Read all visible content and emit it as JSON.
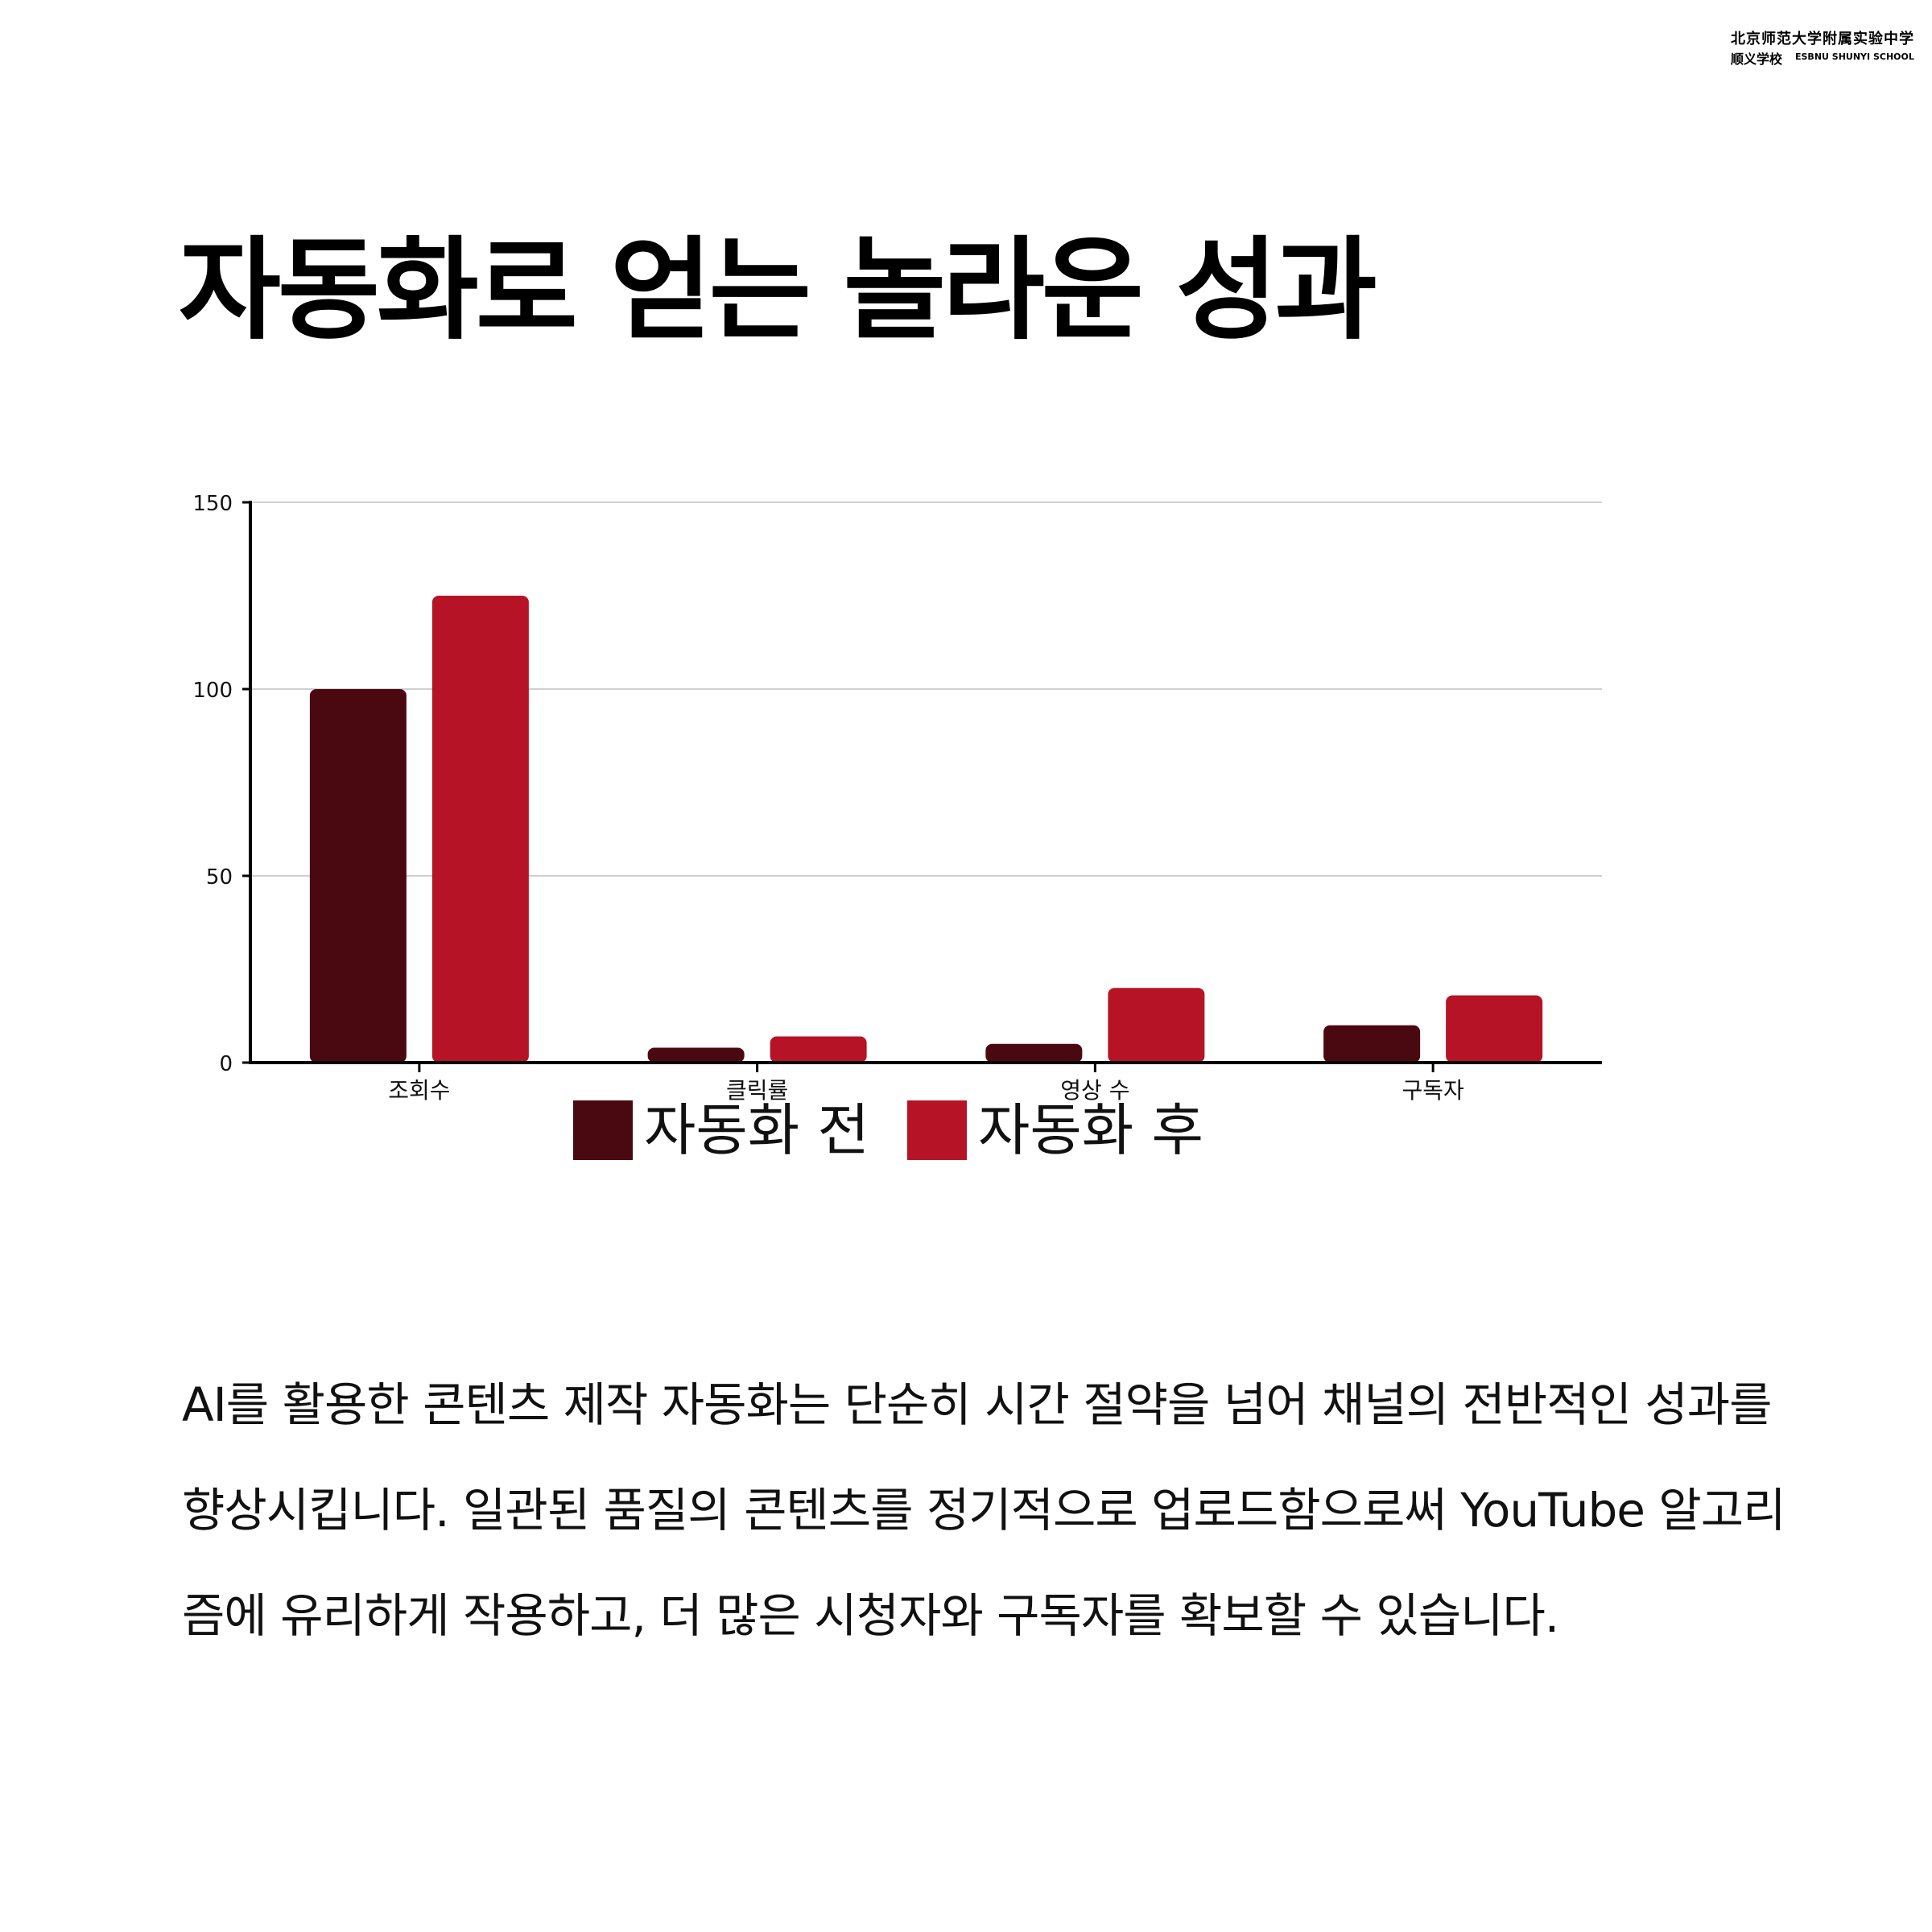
{
  "logo": {
    "line1": "北京师范大学附属实验中学",
    "line2": "顺义学校",
    "line2_en": "ESBNU SHUNYI SCHOOL"
  },
  "title": "자동화로 얻는 놀라운 성과",
  "colors": {
    "before": "#4a0911",
    "after": "#b71326",
    "grid": "#cfcfcf",
    "axis": "#000000"
  },
  "chart_data": {
    "type": "bar",
    "categories": [
      "조회수",
      "클릭률",
      "영상 수",
      "구독자"
    ],
    "series": [
      {
        "name": "자동화 전",
        "values": [
          100,
          4,
          5,
          10
        ]
      },
      {
        "name": "자동화 후",
        "values": [
          125,
          7,
          20,
          18
        ]
      }
    ],
    "ylim": [
      0,
      150
    ],
    "yticks": [
      0,
      50,
      100,
      150
    ],
    "grid": true,
    "legend_position": "bottom-center"
  },
  "body": "AI를 활용한 콘텐츠 제작 자동화는 단순히 시간 절약을 넘어 채널의 전반적인 성과를 향상시킵니다. 일관된 품질의 콘텐츠를 정기적으로 업로드함으로써 YouTube 알고리즘에 유리하게 작용하고, 더 많은 시청자와 구독자를 확보할 수 있습니다."
}
